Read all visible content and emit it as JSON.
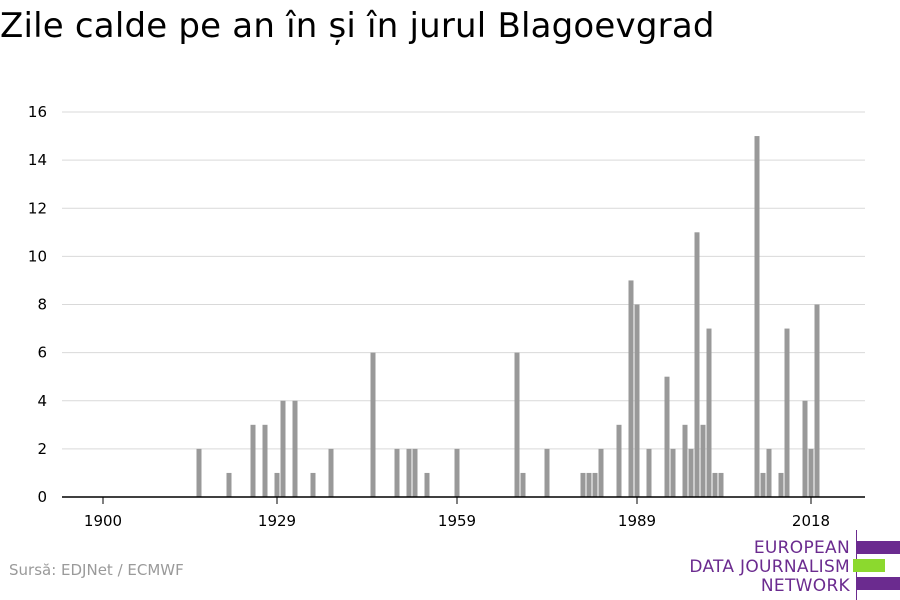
{
  "title": "Zile calde pe an în și în jurul Blagoevgrad",
  "source": "Sursă: EDJNet / ECMWF",
  "logo": {
    "lines": [
      "EUROPEAN",
      "DATA JOURNALISM",
      "NETWORK"
    ],
    "colors": {
      "purple": "#6b2b8f",
      "green": "#8cd92e"
    }
  },
  "chart_data": {
    "type": "bar",
    "ylim": [
      0,
      16
    ],
    "yticks": [
      0,
      2,
      4,
      6,
      8,
      10,
      12,
      14,
      16
    ],
    "xlim": [
      1900,
      2020
    ],
    "xticks": [
      1900,
      1929,
      1959,
      1989,
      2018
    ],
    "grid": true,
    "bar_color": "#999999",
    "x": [
      1916,
      1921,
      1925,
      1927,
      1929,
      1930,
      1932,
      1935,
      1938,
      1945,
      1949,
      1951,
      1952,
      1954,
      1959,
      1969,
      1970,
      1974,
      1980,
      1981,
      1982,
      1983,
      1986,
      1988,
      1989,
      1991,
      1994,
      1995,
      1997,
      1998,
      1999,
      2000,
      2001,
      2002,
      2003,
      2009,
      2010,
      2011,
      2013,
      2014,
      2017,
      2018,
      2019
    ],
    "values": [
      2,
      1,
      3,
      3,
      1,
      4,
      4,
      1,
      2,
      6,
      2,
      2,
      2,
      1,
      2,
      6,
      1,
      2,
      1,
      1,
      1,
      2,
      3,
      9,
      8,
      2,
      5,
      2,
      3,
      2,
      11,
      3,
      7,
      1,
      1,
      15,
      1,
      2,
      1,
      7,
      4,
      2,
      8
    ]
  }
}
